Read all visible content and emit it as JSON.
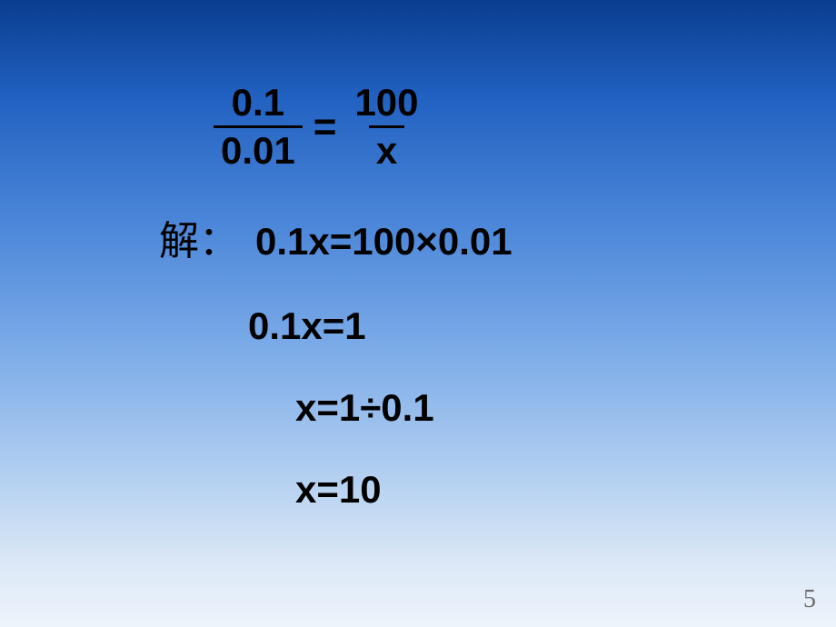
{
  "equation": {
    "left_numerator": "0.1",
    "left_denominator": "0.01",
    "equals": "=",
    "right_numerator": "100",
    "right_denominator": "x"
  },
  "solution": {
    "label": "解：",
    "step1": "0.1x=100×0.01",
    "step2": "0.1x=1",
    "step3": "x=1÷0.1",
    "step4": "x=10"
  },
  "page_number": "5"
}
